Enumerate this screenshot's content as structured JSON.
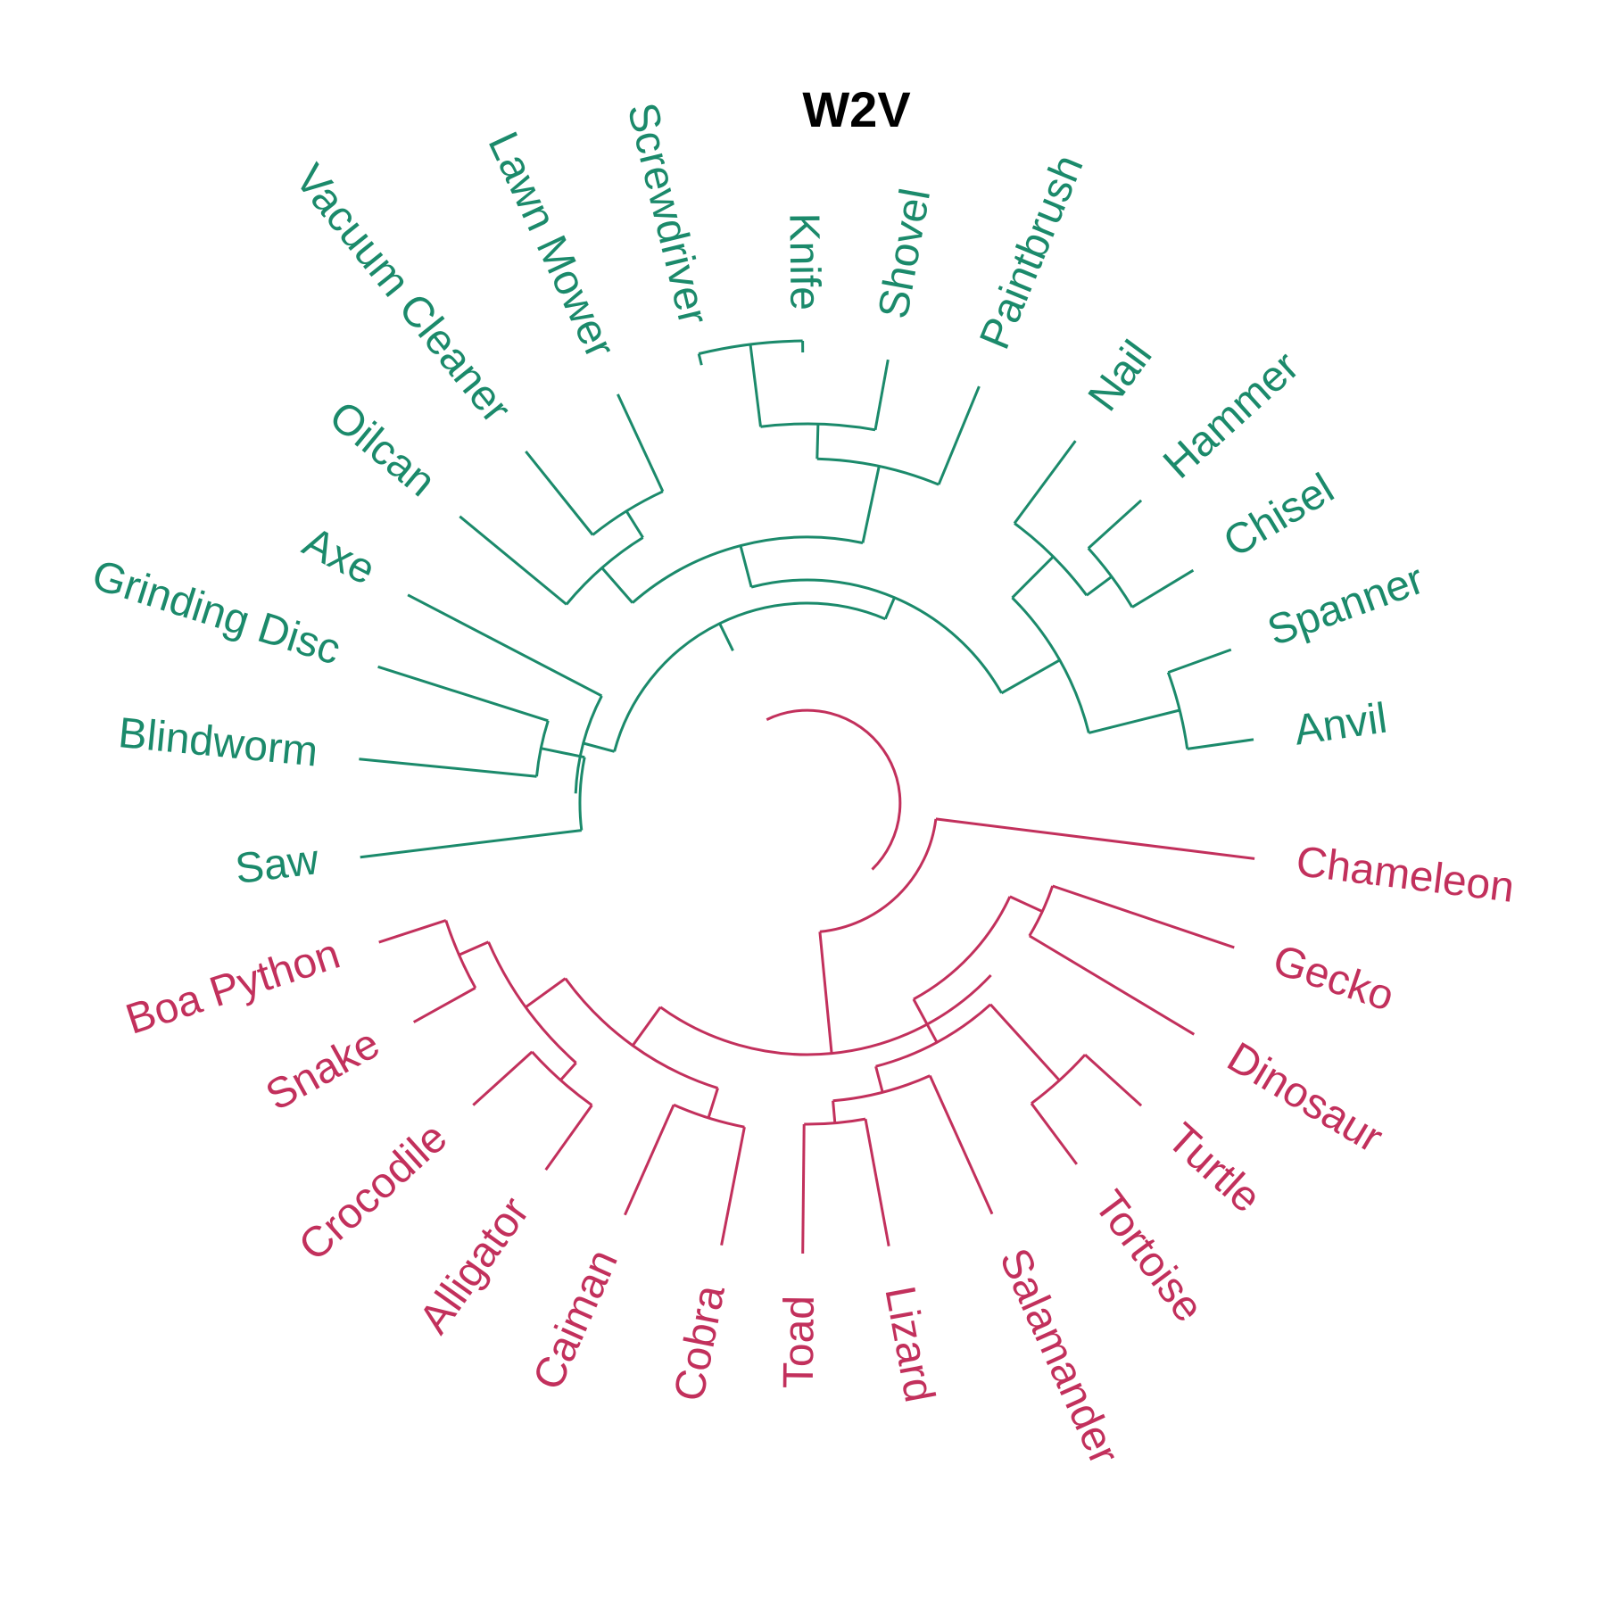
{
  "title": "W2V",
  "colors": {
    "tools": "#1b8a6b",
    "reptiles": "#c2305c",
    "background": "#ffffff",
    "title": "#000000"
  },
  "groups": [
    {
      "name": "tools",
      "leaves": [
        "Anvil",
        "Spanner",
        "Chisel",
        "Hammer",
        "Nail",
        "Paintbrush",
        "Shovel",
        "Knife",
        "Screwdriver",
        "Lawn Mower",
        "Vacuum Cleaner",
        "Oilcan",
        "Axe",
        "Grinding Disc",
        "Blindworm",
        "Saw"
      ]
    },
    {
      "name": "reptiles",
      "leaves": [
        "Boa Python",
        "Snake",
        "Crocodile",
        "Alligator",
        "Caiman",
        "Cobra",
        "Toad",
        "Lizard",
        "Salamander",
        "Tortoise",
        "Turtle",
        "Dinosaur",
        "Gecko",
        "Chameleon"
      ]
    }
  ]
}
